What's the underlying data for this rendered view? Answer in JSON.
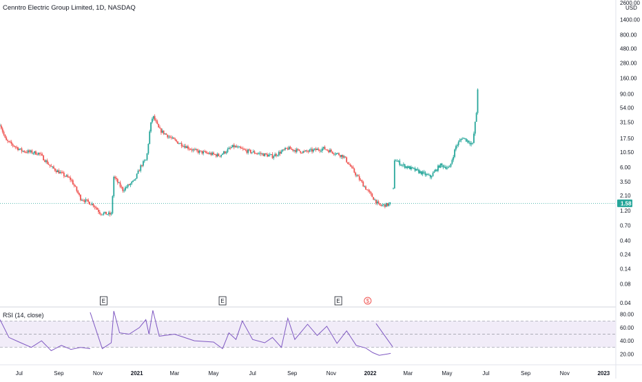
{
  "colors": {
    "up": "#26a69a",
    "down": "#ef5350",
    "rsi_line": "#7e57c2",
    "rsi_band": "#ede7f6",
    "price_line": "#26a69a",
    "axis_text": "#131722",
    "grid": "#e0e3eb"
  },
  "chart_data": [
    {
      "type": "candlestick",
      "title": "Cenntro Electric Group Limited, 1D, NASDAQ",
      "currency": "USD",
      "y_scale": "log",
      "ylim": [
        0.04,
        2600
      ],
      "xlim": [
        "2020-06-01",
        "2023-01-20"
      ],
      "price_ticks": [
        2600,
        1400,
        800,
        480,
        280,
        160,
        90,
        54,
        31.5,
        17.5,
        10.5,
        6,
        3.5,
        2.1,
        1.2,
        0.7,
        0.4,
        0.24,
        0.14,
        0.08,
        0.04
      ],
      "price_tick_labels": [
        "2600.00",
        "1400.00",
        "800.00",
        "480.00",
        "280.00",
        "160.00",
        "90.00",
        "54.00",
        "31.50",
        "17.50",
        "10.50",
        "6.00",
        "3.50",
        "2.10",
        "1.20",
        "0.70",
        "0.40",
        "0.24",
        "0.14",
        "0.08",
        "0.04"
      ],
      "last_price": 1.58,
      "last_price_label": "1.58",
      "events": [
        {
          "date": "2020-11-10",
          "label": "E"
        },
        {
          "date": "2021-05-15",
          "label": "E"
        },
        {
          "date": "2021-11-12",
          "label": "E"
        },
        {
          "date": "2021-12-28",
          "label": "$"
        }
      ],
      "price_path": [
        {
          "date": "2020-06-01",
          "value": 30
        },
        {
          "date": "2020-06-10",
          "value": 16
        },
        {
          "date": "2020-07-05",
          "value": 11
        },
        {
          "date": "2020-08-01",
          "value": 10
        },
        {
          "date": "2020-08-20",
          "value": 6
        },
        {
          "date": "2020-09-20",
          "value": 3.8
        },
        {
          "date": "2020-10-05",
          "value": 1.9
        },
        {
          "date": "2020-10-25",
          "value": 1.5
        },
        {
          "date": "2020-11-05",
          "value": 1.1
        },
        {
          "date": "2020-11-22",
          "value": 1.05
        },
        {
          "date": "2020-11-26",
          "value": 4.2
        },
        {
          "date": "2020-12-10",
          "value": 2.6
        },
        {
          "date": "2020-12-28",
          "value": 3.6
        },
        {
          "date": "2021-01-08",
          "value": 6.5
        },
        {
          "date": "2021-01-16",
          "value": 8
        },
        {
          "date": "2021-01-22",
          "value": 27
        },
        {
          "date": "2021-01-26",
          "value": 40
        },
        {
          "date": "2021-02-05",
          "value": 24
        },
        {
          "date": "2021-03-01",
          "value": 16
        },
        {
          "date": "2021-04-01",
          "value": 11
        },
        {
          "date": "2021-05-10",
          "value": 9.2
        },
        {
          "date": "2021-06-01",
          "value": 13
        },
        {
          "date": "2021-06-20",
          "value": 11
        },
        {
          "date": "2021-08-01",
          "value": 9
        },
        {
          "date": "2021-08-25",
          "value": 12
        },
        {
          "date": "2021-09-20",
          "value": 10.5
        },
        {
          "date": "2021-10-20",
          "value": 12
        },
        {
          "date": "2021-11-20",
          "value": 9
        },
        {
          "date": "2021-12-10",
          "value": 4.5
        },
        {
          "date": "2021-12-28",
          "value": 2.5
        },
        {
          "date": "2022-01-15",
          "value": 1.45
        },
        {
          "date": "2022-01-28",
          "value": 1.5
        },
        {
          "date": "2022-02-02",
          "value": 1.58
        }
      ],
      "projection_path": [
        {
          "date": "2022-02-06",
          "value": 2.6
        },
        {
          "date": "2022-02-08",
          "value": 8
        },
        {
          "date": "2022-02-20",
          "value": 6.5
        },
        {
          "date": "2022-03-20",
          "value": 5
        },
        {
          "date": "2022-04-05",
          "value": 4.2
        },
        {
          "date": "2022-04-20",
          "value": 6.5
        },
        {
          "date": "2022-05-05",
          "value": 5.8
        },
        {
          "date": "2022-05-15",
          "value": 13
        },
        {
          "date": "2022-05-25",
          "value": 18
        },
        {
          "date": "2022-06-10",
          "value": 14
        },
        {
          "date": "2022-06-16",
          "value": 45
        },
        {
          "date": "2022-06-18",
          "value": 110
        }
      ],
      "x_ticks": [
        {
          "date": "2020-07-01",
          "label": "Jul",
          "bold": false
        },
        {
          "date": "2020-09-01",
          "label": "Sep",
          "bold": false
        },
        {
          "date": "2020-11-01",
          "label": "Nov",
          "bold": false
        },
        {
          "date": "2021-01-01",
          "label": "2021",
          "bold": true
        },
        {
          "date": "2021-03-01",
          "label": "Mar",
          "bold": false
        },
        {
          "date": "2021-05-01",
          "label": "May",
          "bold": false
        },
        {
          "date": "2021-07-01",
          "label": "Jul",
          "bold": false
        },
        {
          "date": "2021-09-01",
          "label": "Sep",
          "bold": false
        },
        {
          "date": "2021-11-01",
          "label": "Nov",
          "bold": false
        },
        {
          "date": "2022-01-01",
          "label": "2022",
          "bold": true
        },
        {
          "date": "2022-03-01",
          "label": "Mar",
          "bold": false
        },
        {
          "date": "2022-05-01",
          "label": "May",
          "bold": false
        },
        {
          "date": "2022-07-01",
          "label": "Jul",
          "bold": false
        },
        {
          "date": "2022-09-01",
          "label": "Sep",
          "bold": false
        },
        {
          "date": "2022-11-01",
          "label": "Nov",
          "bold": false
        },
        {
          "date": "2023-01-01",
          "label": "2023",
          "bold": true
        }
      ]
    },
    {
      "type": "line",
      "title": "RSI (14, close)",
      "ylim": [
        12,
        88
      ],
      "band": [
        30,
        70
      ],
      "midline": 50,
      "y_ticks": [
        80,
        60,
        40,
        20
      ],
      "y_tick_labels": [
        "80.00",
        "60.00",
        "40.00",
        "20.00"
      ],
      "rsi_path": [
        {
          "date": "2020-06-01",
          "value": 72
        },
        {
          "date": "2020-06-15",
          "value": 45
        },
        {
          "date": "2020-07-01",
          "value": 38
        },
        {
          "date": "2020-07-20",
          "value": 30
        },
        {
          "date": "2020-08-05",
          "value": 40
        },
        {
          "date": "2020-08-20",
          "value": 25
        },
        {
          "date": "2020-09-05",
          "value": 33
        },
        {
          "date": "2020-09-20",
          "value": 27
        },
        {
          "date": "2020-10-05",
          "value": 30
        },
        {
          "date": "2020-10-20",
          "value": 28
        }
      ],
      "rsi_path_2": [
        {
          "date": "2020-10-20",
          "value": 83
        },
        {
          "date": "2020-11-08",
          "value": 28
        },
        {
          "date": "2020-11-22",
          "value": 37
        },
        {
          "date": "2020-11-26",
          "value": 85
        },
        {
          "date": "2020-12-05",
          "value": 52
        },
        {
          "date": "2020-12-20",
          "value": 50
        },
        {
          "date": "2021-01-05",
          "value": 60
        },
        {
          "date": "2021-01-15",
          "value": 72
        },
        {
          "date": "2021-01-20",
          "value": 50
        },
        {
          "date": "2021-01-26",
          "value": 86
        },
        {
          "date": "2021-02-05",
          "value": 47
        },
        {
          "date": "2021-03-01",
          "value": 50
        },
        {
          "date": "2021-04-01",
          "value": 40
        },
        {
          "date": "2021-05-01",
          "value": 38
        },
        {
          "date": "2021-05-15",
          "value": 28
        },
        {
          "date": "2021-05-25",
          "value": 52
        },
        {
          "date": "2021-06-05",
          "value": 42
        },
        {
          "date": "2021-06-15",
          "value": 70
        },
        {
          "date": "2021-07-01",
          "value": 42
        },
        {
          "date": "2021-07-20",
          "value": 37
        },
        {
          "date": "2021-08-01",
          "value": 45
        },
        {
          "date": "2021-08-15",
          "value": 30
        },
        {
          "date": "2021-08-25",
          "value": 74
        },
        {
          "date": "2021-09-05",
          "value": 42
        },
        {
          "date": "2021-09-25",
          "value": 65
        },
        {
          "date": "2021-10-10",
          "value": 48
        },
        {
          "date": "2021-10-25",
          "value": 62
        },
        {
          "date": "2021-11-10",
          "value": 36
        },
        {
          "date": "2021-11-25",
          "value": 55
        },
        {
          "date": "2021-12-10",
          "value": 33
        },
        {
          "date": "2021-12-25",
          "value": 29
        },
        {
          "date": "2022-01-05",
          "value": 22
        },
        {
          "date": "2022-01-15",
          "value": 18
        },
        {
          "date": "2022-01-28",
          "value": 20
        },
        {
          "date": "2022-02-02",
          "value": 21
        }
      ],
      "rsi_projection": [
        {
          "date": "2022-01-10",
          "value": 66
        },
        {
          "date": "2022-02-05",
          "value": 31
        }
      ]
    }
  ]
}
